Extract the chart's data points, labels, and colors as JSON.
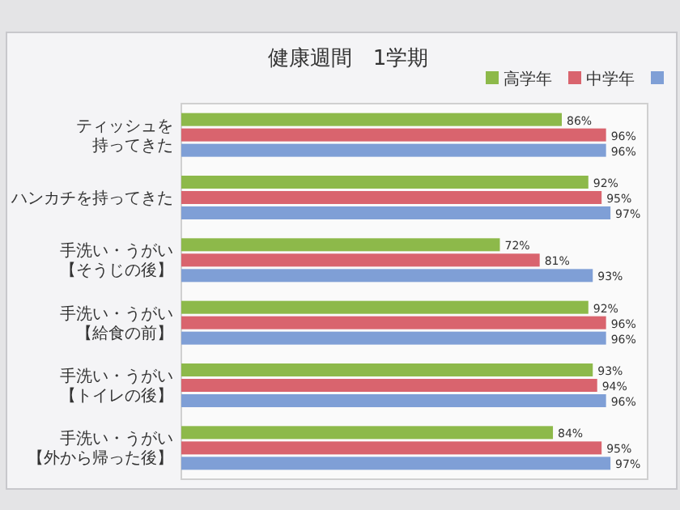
{
  "chart_data": {
    "type": "bar",
    "orientation": "horizontal",
    "title": "健康週間　1学期",
    "categories": [
      "ティッシュを持ってきた",
      "ハンカチを持ってきた",
      "手洗い・うがい【そうじの後】",
      "手洗い・うがい【給食の前】",
      "手洗い・うがい【トイレの後】",
      "手洗い・うがい【外から帰った後】"
    ],
    "tick_labels": "y",
    "legend": "top right",
    "series": [
      {
        "name": "高学年",
        "color": "#8db94a",
        "values": [
          86,
          92,
          72,
          92,
          93,
          84
        ],
        "value_labels": [
          "86%",
          "92%",
          "72%",
          "92%",
          "93%",
          "84%"
        ]
      },
      {
        "name": "中学年",
        "color": "#d9646e",
        "values": [
          96,
          95,
          81,
          96,
          94,
          95
        ],
        "value_labels": [
          "96%",
          "95%",
          "81%",
          "96%",
          "94%",
          "95%"
        ]
      },
      {
        "color": "#7f9fd6",
        "values": [
          96,
          97,
          93,
          96,
          96,
          97
        ],
        "value_labels": [
          "96%",
          "97%",
          "93%",
          "96%",
          "96%",
          "97%"
        ]
      }
    ]
  }
}
